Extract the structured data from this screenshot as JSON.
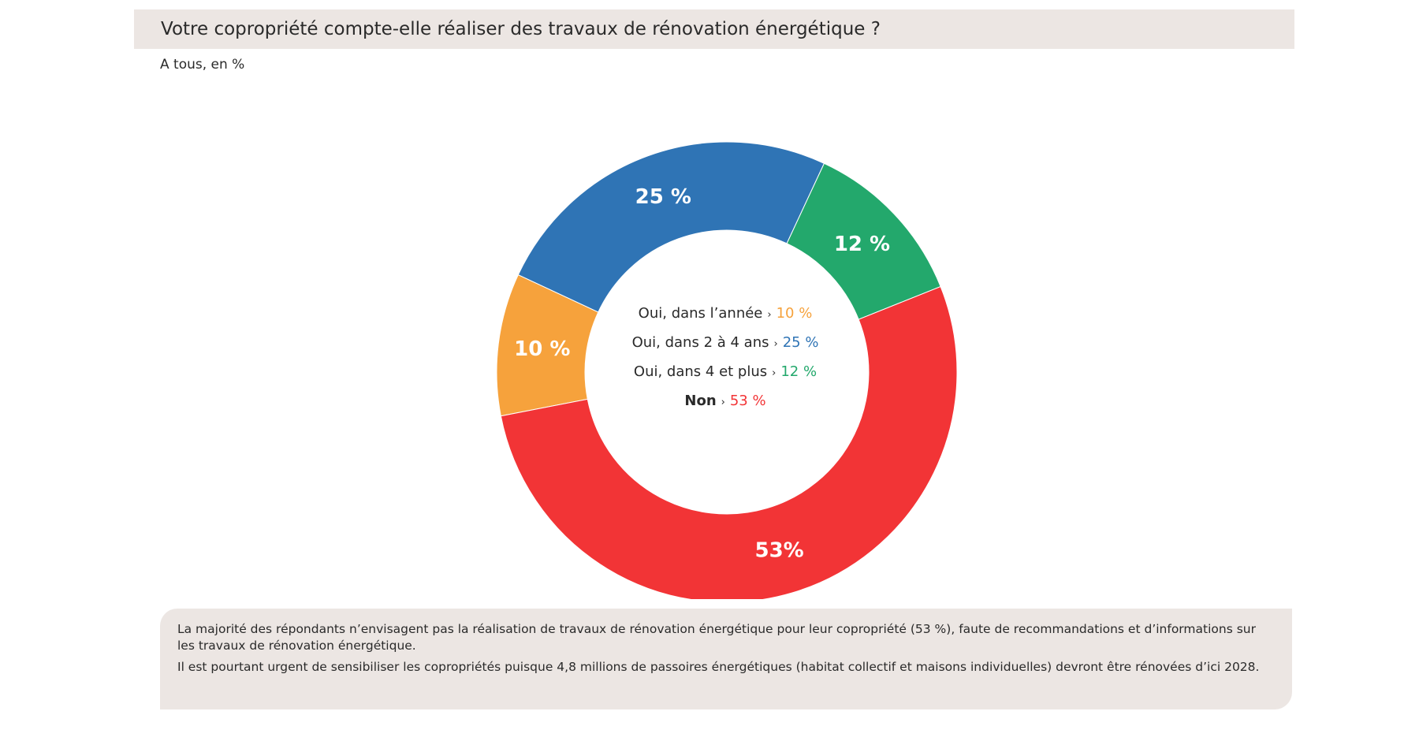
{
  "header": {
    "title": "Votre copropriété compte-elle réaliser des travaux de rénovation énergétique ?",
    "subtitle": "A tous, en %"
  },
  "chart_data": {
    "type": "pie",
    "style": "donut",
    "slices": [
      {
        "label": "Oui, dans l’année",
        "value": 10,
        "data_label": "10 %",
        "legend_value": "10 %",
        "color": "#f6a23c"
      },
      {
        "label": "Oui, dans 2 à 4 ans",
        "value": 25,
        "data_label": "25 %",
        "legend_value": "25 %",
        "color": "#2f74b5"
      },
      {
        "label": "Oui, dans 4 et plus",
        "value": 12,
        "data_label": "12 %",
        "legend_value": "12 %",
        "color": "#23a86c"
      },
      {
        "label": "Non",
        "value": 53,
        "data_label": "53%",
        "legend_value": "53 %",
        "color": "#f23436"
      }
    ],
    "legend_placement": "center"
  },
  "note": {
    "paragraphs": [
      " La majorité des répondants n’envisagent pas la réalisation de travaux de rénovation énergétique pour leur copropriété (53 %), faute de recommandations et d’informations sur les travaux de rénovation énergétique.",
      "Il est pourtant urgent de sensibiliser les copropriétés puisque 4,8 millions de passoires énergétiques  (habitat collectif et maisons individuelles) devront être rénovées d’ici 2028."
    ]
  }
}
